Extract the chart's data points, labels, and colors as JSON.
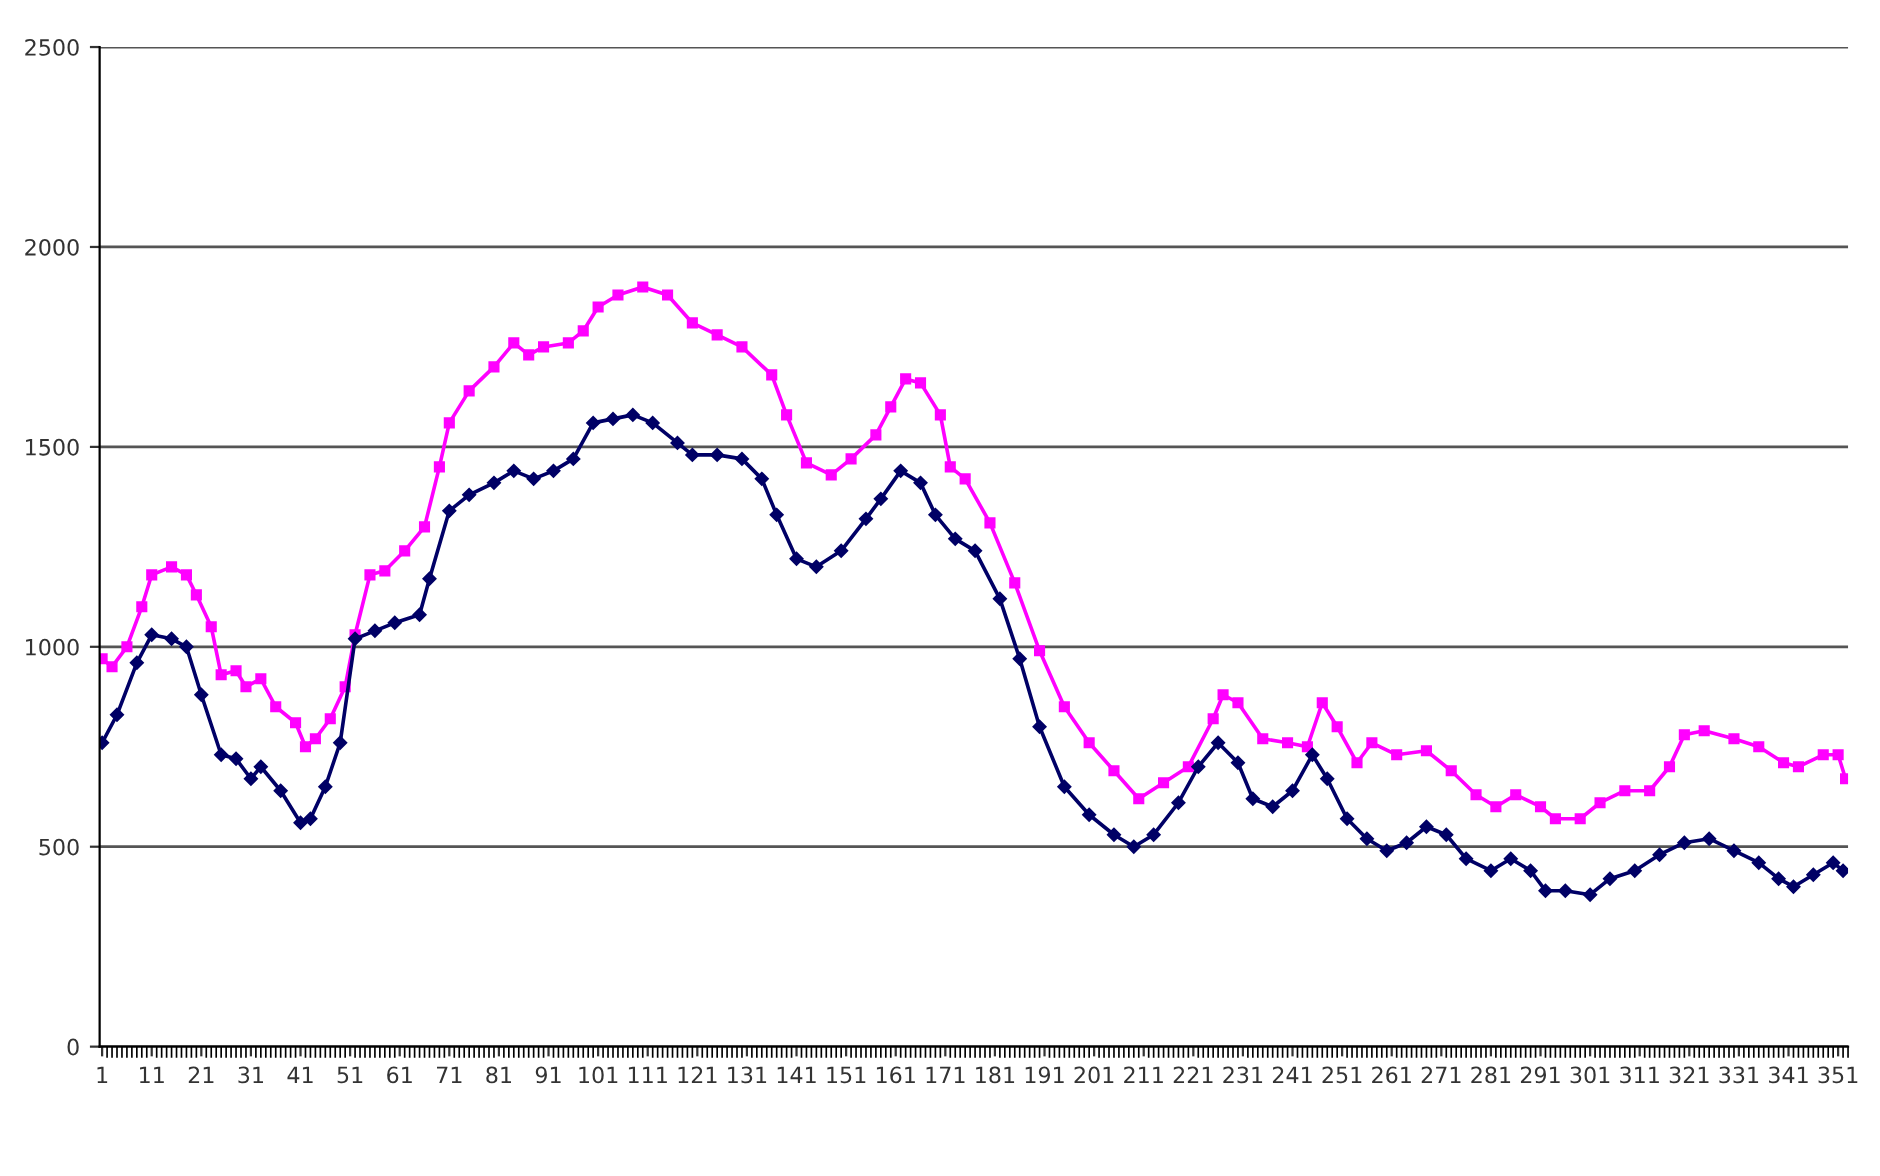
{
  "chart_data": {
    "type": "line",
    "xlim": [
      0.5,
      353
    ],
    "xticks": [
      1,
      11,
      21,
      31,
      41,
      51,
      61,
      71,
      81,
      91,
      101,
      111,
      121,
      131,
      141,
      151,
      161,
      171,
      181,
      191,
      201,
      211,
      221,
      231,
      241,
      251,
      261,
      271,
      281,
      291,
      301,
      311,
      321,
      331,
      341,
      351
    ],
    "ylim": [
      0,
      2500
    ],
    "yticks": [
      0,
      500,
      1000,
      1500,
      2000,
      2500
    ],
    "grid": "y",
    "legend": false,
    "series": [
      {
        "color": "#ff00ff",
        "marker": "square",
        "x": [
          1,
          3,
          6,
          9,
          11,
          15,
          18,
          20,
          23,
          25,
          28,
          30,
          33,
          36,
          40,
          42,
          44,
          47,
          50,
          52,
          55,
          58,
          62,
          66,
          69,
          71,
          75,
          80,
          84,
          87,
          90,
          95,
          98,
          101,
          105,
          110,
          115,
          120,
          125,
          130,
          136,
          139,
          143,
          148,
          152,
          157,
          160,
          163,
          166,
          170,
          172,
          175,
          180,
          185,
          190,
          195,
          200,
          205,
          210,
          215,
          220,
          225,
          227,
          230,
          235,
          240,
          244,
          247,
          250,
          254,
          257,
          262,
          268,
          273,
          278,
          282,
          286,
          291,
          294,
          299,
          303,
          308,
          313,
          317,
          320,
          324,
          330,
          335,
          340,
          343,
          348,
          351,
          352.5
        ],
        "values": [
          970,
          950,
          1000,
          1100,
          1180,
          1200,
          1180,
          1130,
          1050,
          930,
          940,
          900,
          920,
          850,
          810,
          750,
          770,
          820,
          900,
          1030,
          1180,
          1190,
          1240,
          1300,
          1450,
          1560,
          1640,
          1700,
          1760,
          1730,
          1750,
          1760,
          1790,
          1850,
          1880,
          1900,
          1880,
          1810,
          1780,
          1750,
          1680,
          1580,
          1460,
          1430,
          1470,
          1530,
          1600,
          1670,
          1660,
          1580,
          1450,
          1420,
          1310,
          1160,
          990,
          850,
          760,
          690,
          620,
          660,
          700,
          820,
          880,
          860,
          770,
          760,
          750,
          860,
          800,
          710,
          760,
          730,
          740,
          690,
          630,
          600,
          630,
          600,
          570,
          570,
          610,
          640,
          640,
          700,
          780,
          790,
          770,
          750,
          710,
          700,
          730,
          730,
          670
        ]
      },
      {
        "color": "#000066",
        "marker": "diamond",
        "x": [
          1,
          4,
          8,
          11,
          15,
          18,
          21,
          25,
          28,
          31,
          33,
          37,
          41,
          43,
          46,
          49,
          52,
          56,
          60,
          65,
          67,
          71,
          75,
          80,
          84,
          88,
          92,
          96,
          100,
          104,
          108,
          112,
          117,
          120,
          125,
          130,
          134,
          137,
          141,
          145,
          150,
          155,
          158,
          162,
          166,
          169,
          173,
          177,
          182,
          186,
          190,
          195,
          200,
          205,
          209,
          213,
          218,
          222,
          226,
          230,
          233,
          237,
          241,
          245,
          248,
          252,
          256,
          260,
          264,
          268,
          272,
          276,
          281,
          285,
          289,
          292,
          296,
          301,
          305,
          310,
          315,
          320,
          325,
          330,
          335,
          339,
          342,
          346,
          350,
          352
        ],
        "values": [
          760,
          830,
          960,
          1030,
          1020,
          1000,
          880,
          730,
          720,
          670,
          700,
          640,
          560,
          570,
          650,
          760,
          1020,
          1040,
          1060,
          1080,
          1170,
          1340,
          1380,
          1410,
          1440,
          1420,
          1440,
          1470,
          1560,
          1570,
          1580,
          1560,
          1510,
          1480,
          1480,
          1470,
          1420,
          1330,
          1220,
          1200,
          1240,
          1320,
          1370,
          1440,
          1410,
          1330,
          1270,
          1240,
          1120,
          970,
          800,
          650,
          580,
          530,
          500,
          530,
          610,
          700,
          760,
          710,
          620,
          600,
          640,
          730,
          670,
          570,
          520,
          490,
          510,
          550,
          530,
          470,
          440,
          470,
          440,
          390,
          390,
          380,
          420,
          440,
          480,
          510,
          520,
          490,
          460,
          420,
          400,
          430,
          460,
          440
        ]
      }
    ]
  }
}
